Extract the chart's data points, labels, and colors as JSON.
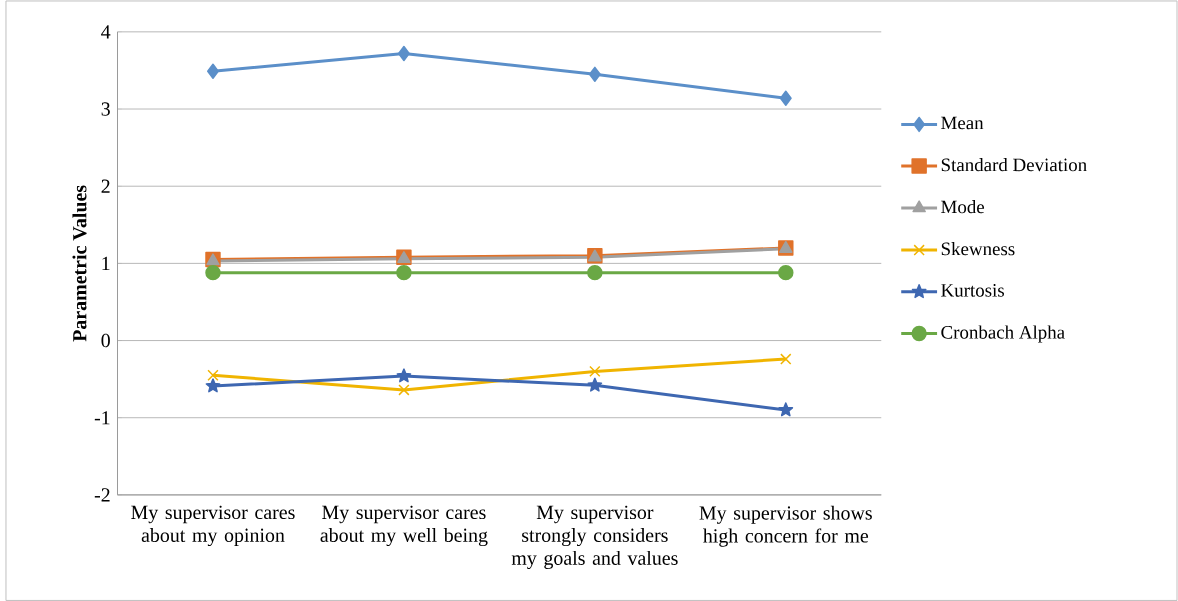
{
  "chart_data": {
    "type": "line",
    "ylabel": "Parametric Values",
    "categories": [
      "My supervisor cares about my opinion",
      "My supervisor cares about my well being",
      "My supervisor strongly considers my goals and values",
      "My supervisor shows high concern for me"
    ],
    "series": [
      {
        "name": "Mean",
        "color": "#5b8fc9",
        "marker": "diamond",
        "values": [
          3.49,
          3.72,
          3.45,
          3.14
        ]
      },
      {
        "name": "Standard Deviation",
        "color": "#e0722a",
        "marker": "square",
        "values": [
          1.05,
          1.08,
          1.1,
          1.2
        ]
      },
      {
        "name": "Mode",
        "color": "#a0a0a0",
        "marker": "triangle",
        "values": [
          1.03,
          1.06,
          1.08,
          1.19
        ]
      },
      {
        "name": "Skewness",
        "color": "#f0b400",
        "marker": "cross",
        "values": [
          -0.45,
          -0.64,
          -0.4,
          -0.24
        ]
      },
      {
        "name": "Kurtosis",
        "color": "#3e67b1",
        "marker": "star",
        "values": [
          -0.59,
          -0.46,
          -0.58,
          -0.9
        ]
      },
      {
        "name": "Cronbach Alpha",
        "color": "#6aa845",
        "marker": "circle",
        "values": [
          0.88,
          0.88,
          0.88,
          0.88
        ]
      }
    ],
    "ylim": [
      -2,
      4
    ],
    "yticks": [
      -2,
      -1,
      0,
      1,
      2,
      3,
      4
    ],
    "grid": "y",
    "legend": "right"
  }
}
